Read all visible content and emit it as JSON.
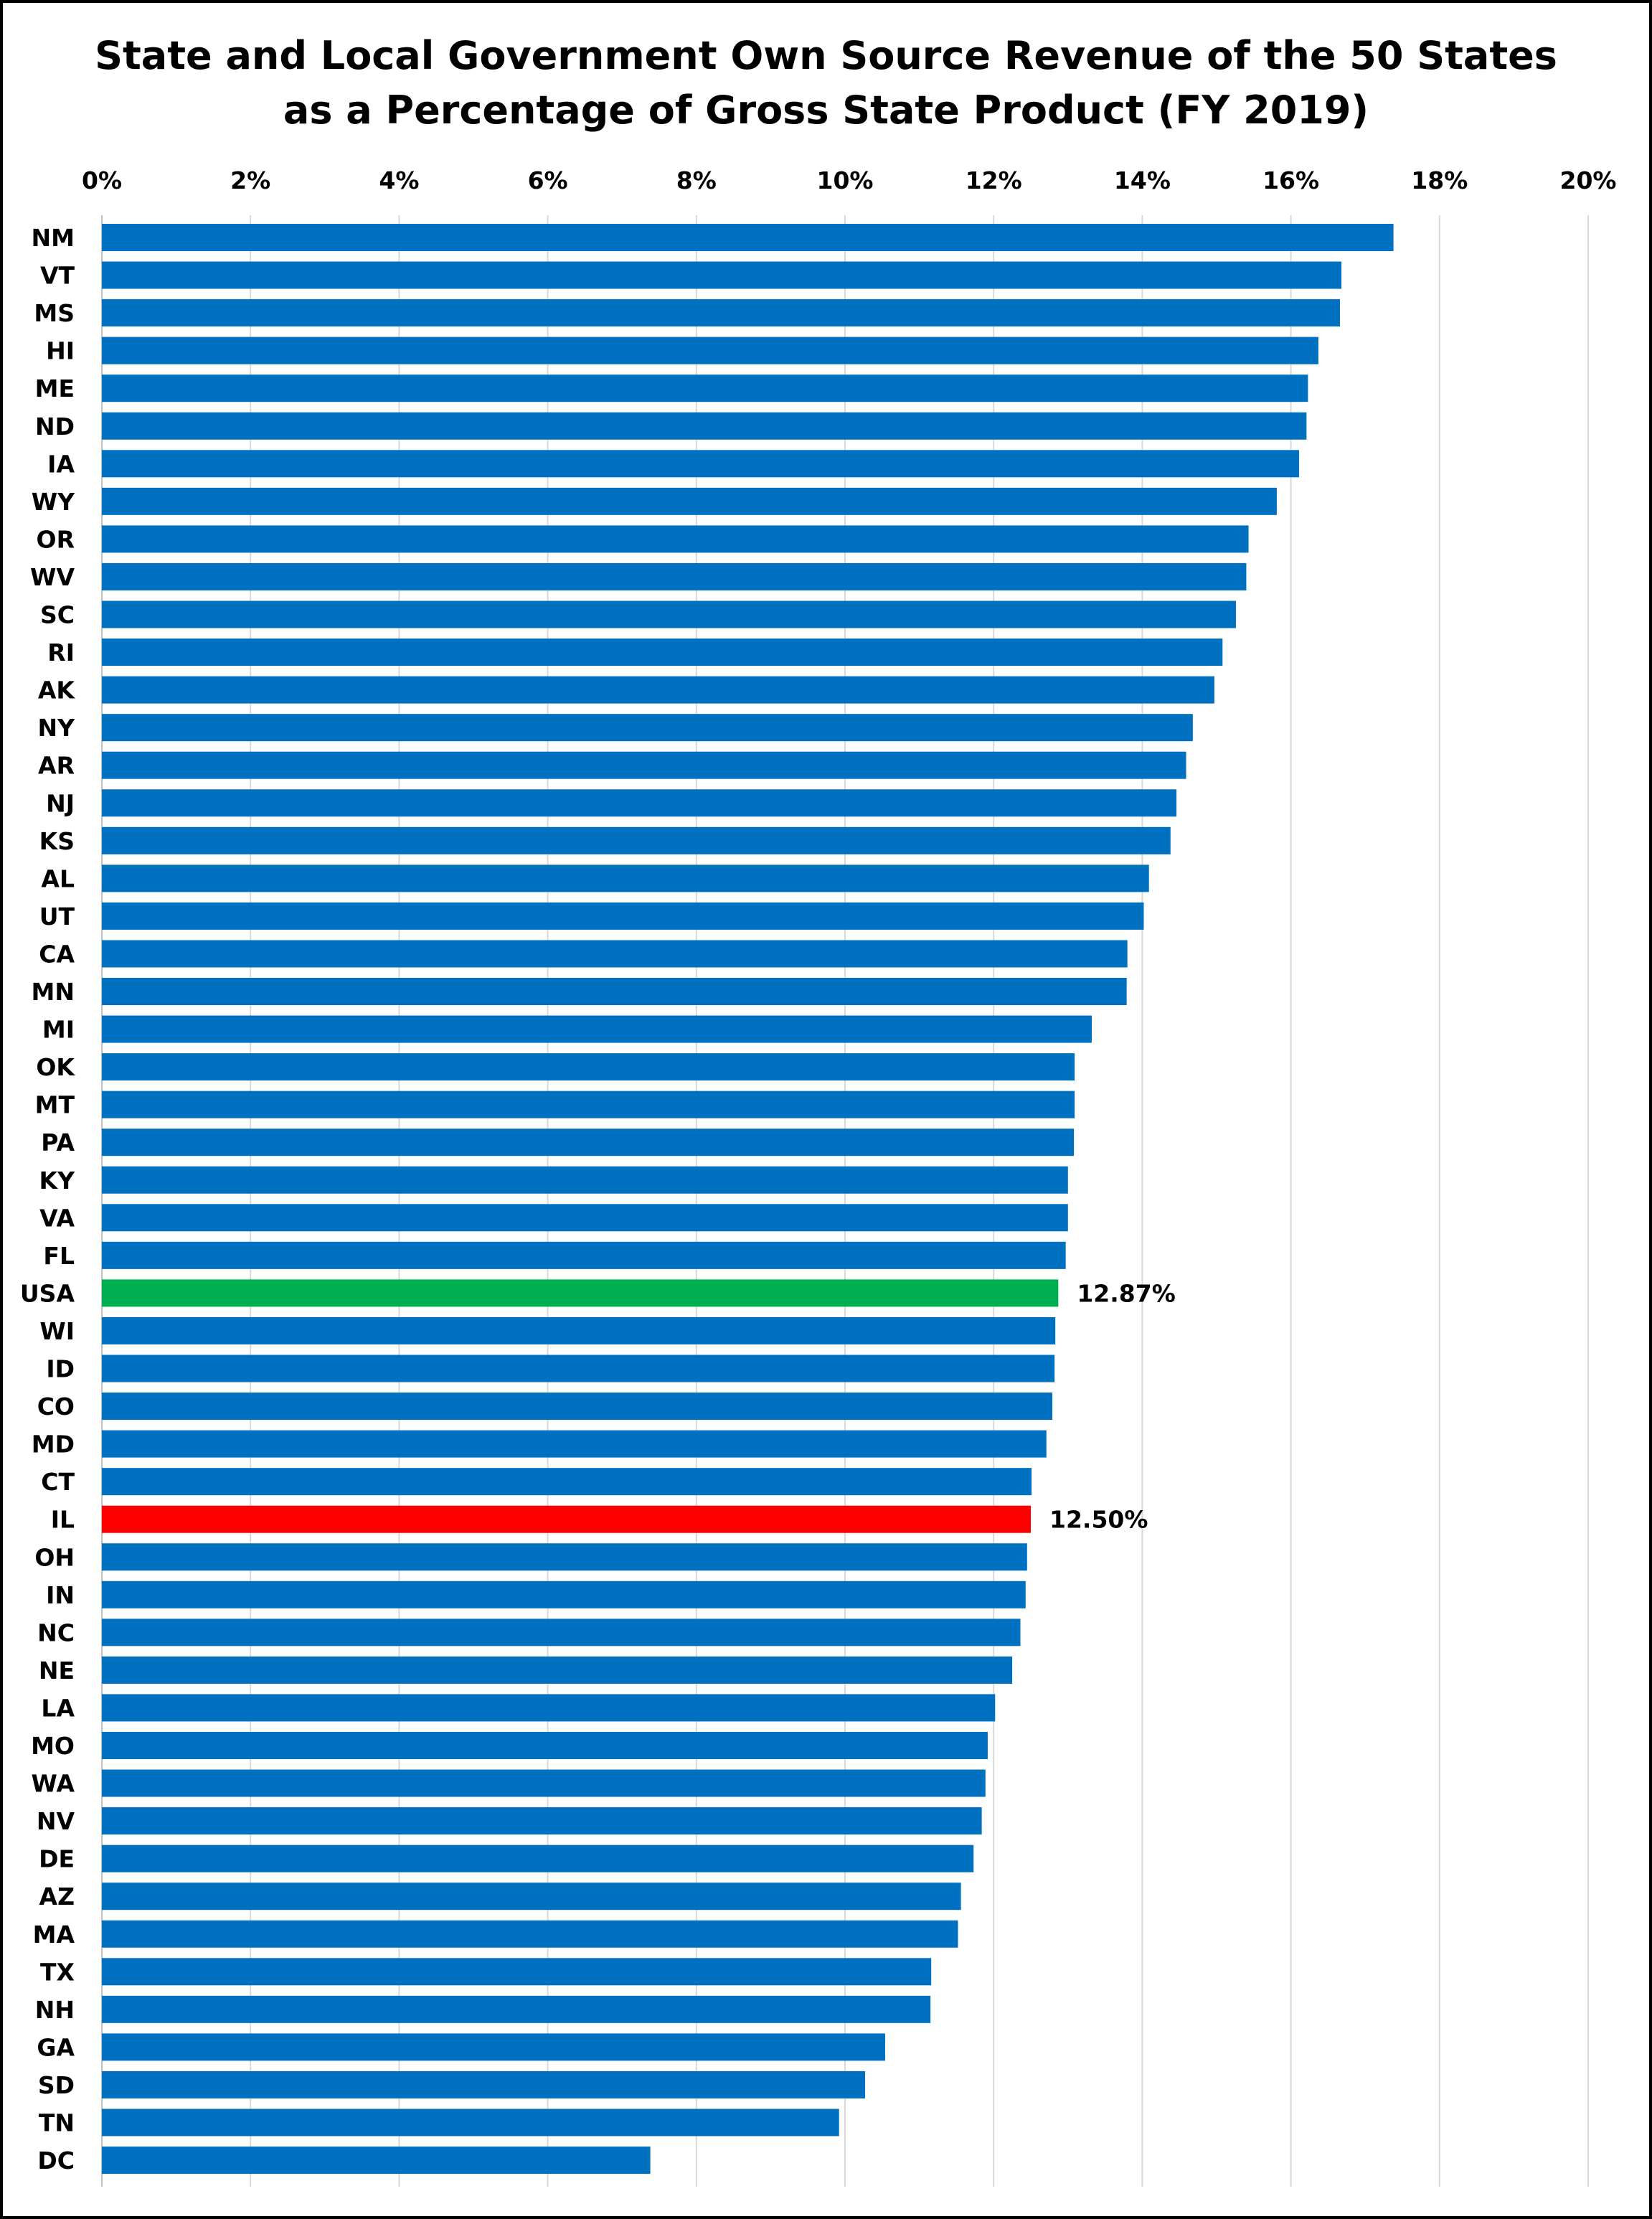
{
  "chart_data": {
    "type": "bar",
    "orientation": "horizontal",
    "title_lines": [
      "State and Local Government Own Source Revenue of the 50 States",
      "as a Percentage of Gross State Product (FY 2019)"
    ],
    "xlabel": "",
    "ylabel": "",
    "xlim": [
      0,
      20
    ],
    "x_ticks": [
      0,
      2,
      4,
      6,
      8,
      10,
      12,
      14,
      16,
      18,
      20
    ],
    "x_tick_labels": [
      "0%",
      "2%",
      "4%",
      "6%",
      "8%",
      "10%",
      "12%",
      "14%",
      "16%",
      "18%",
      "20%"
    ],
    "x_axis_position": "top",
    "grid": true,
    "legend": "none",
    "default_color": "#0070C0",
    "categories": [
      "NM",
      "VT",
      "MS",
      "HI",
      "ME",
      "ND",
      "IA",
      "WY",
      "OR",
      "WV",
      "SC",
      "RI",
      "AK",
      "NY",
      "AR",
      "NJ",
      "KS",
      "AL",
      "UT",
      "CA",
      "MN",
      "MI",
      "OK",
      "MT",
      "PA",
      "KY",
      "VA",
      "FL",
      "USA",
      "WI",
      "ID",
      "CO",
      "MD",
      "CT",
      "IL",
      "OH",
      "IN",
      "NC",
      "NE",
      "LA",
      "MO",
      "WA",
      "NV",
      "DE",
      "AZ",
      "MA",
      "TX",
      "NH",
      "GA",
      "SD",
      "TN",
      "DC"
    ],
    "values": [
      17.38,
      16.68,
      16.66,
      16.37,
      16.23,
      16.21,
      16.11,
      15.81,
      15.43,
      15.4,
      15.26,
      15.08,
      14.97,
      14.68,
      14.59,
      14.46,
      14.38,
      14.09,
      14.02,
      13.8,
      13.79,
      13.32,
      13.09,
      13.09,
      13.08,
      13.0,
      13.0,
      12.97,
      12.87,
      12.83,
      12.82,
      12.79,
      12.71,
      12.51,
      12.5,
      12.45,
      12.43,
      12.36,
      12.25,
      12.02,
      11.92,
      11.89,
      11.84,
      11.73,
      11.56,
      11.52,
      11.16,
      11.15,
      10.54,
      10.27,
      9.92,
      7.38
    ],
    "highlights": [
      {
        "category": "USA",
        "color": "#00B050",
        "label": "12.87%"
      },
      {
        "category": "IL",
        "color": "#FF0000",
        "label": "12.50%"
      }
    ]
  }
}
